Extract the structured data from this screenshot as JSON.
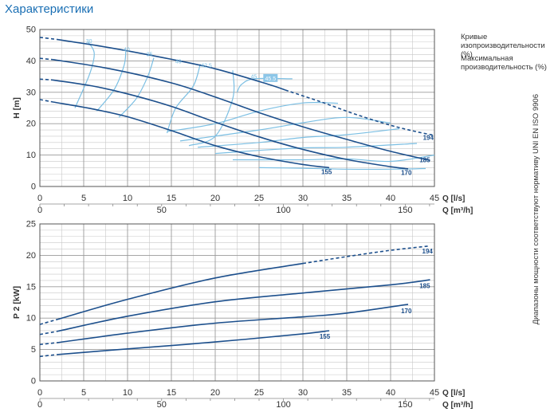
{
  "page": {
    "title": "Характеристики",
    "legend_iso": "Кривые изопроизводительности (%)",
    "legend_max": "Максимальная производительность (%)",
    "side_note": "Диапазоны мощности соответствуют нормативу UNI EN ISO 9906"
  },
  "colors": {
    "curve": "#1c4f8c",
    "iso": "#7bbfe3",
    "grid": "#9a9a9a",
    "label_bg": "#8cc6e8"
  },
  "chart_data": [
    {
      "type": "line",
      "ylabel": "H [m]",
      "xlabel_ls": "Q [l/s]",
      "xlabel_m3h": "Q [m³/h]",
      "xlim": [
        0,
        45
      ],
      "ylim": [
        0,
        50
      ],
      "yticks": [
        0,
        10,
        20,
        30,
        40,
        50
      ],
      "xticks_ls": [
        0,
        5,
        10,
        15,
        20,
        25,
        30,
        35,
        40,
        45
      ],
      "xticks_m3h": [
        0,
        50,
        100,
        150
      ],
      "grid": true,
      "series": [
        {
          "name": "194",
          "dash_start": [
            [
              0,
              47.5
            ],
            [
              2,
              46.8
            ]
          ],
          "solid": [
            [
              2,
              46.8
            ],
            [
              8,
              44.2
            ],
            [
              15,
              40.5
            ],
            [
              20,
              37.5
            ],
            [
              26,
              32.6
            ],
            [
              28,
              30.7
            ]
          ],
          "dash_end": [
            [
              28,
              30.7
            ],
            [
              32,
              27
            ],
            [
              36,
              23
            ],
            [
              40,
              19.5
            ],
            [
              43,
              17.4
            ],
            [
              45,
              16.3
            ]
          ]
        },
        {
          "name": "185",
          "dash_start": [
            [
              0,
              40.8
            ],
            [
              1.5,
              40.4
            ]
          ],
          "solid": [
            [
              1.5,
              40.4
            ],
            [
              8,
              37.5
            ],
            [
              15,
              33
            ],
            [
              20,
              28.5
            ],
            [
              25,
              23.5
            ],
            [
              30,
              19
            ],
            [
              35,
              15
            ],
            [
              40,
              11.2
            ],
            [
              44.5,
              8.3
            ]
          ],
          "dash_end": []
        },
        {
          "name": "170",
          "dash_start": [
            [
              0,
              34.2
            ],
            [
              1.5,
              33.9
            ]
          ],
          "solid": [
            [
              1.5,
              33.9
            ],
            [
              6,
              32
            ],
            [
              10,
              29.5
            ],
            [
              15,
              25.5
            ],
            [
              20,
              20.5
            ],
            [
              25,
              15.8
            ],
            [
              30,
              11.8
            ],
            [
              35,
              8.6
            ],
            [
              40,
              6.3
            ],
            [
              42,
              5.6
            ]
          ],
          "dash_end": []
        },
        {
          "name": "155",
          "dash_start": [
            [
              0,
              27.7
            ],
            [
              1.5,
              26.9
            ]
          ],
          "solid": [
            [
              1.5,
              26.9
            ],
            [
              6,
              24.7
            ],
            [
              10,
              22.2
            ],
            [
              15,
              17.8
            ],
            [
              20,
              13
            ],
            [
              25,
              9.5
            ],
            [
              30,
              7
            ],
            [
              33,
              6
            ]
          ],
          "dash_end": []
        }
      ],
      "series_labels": [
        {
          "text": "194",
          "x": 44.3,
          "y": 14.8
        },
        {
          "text": "185",
          "x": 43.9,
          "y": 7.7
        },
        {
          "text": "170",
          "x": 41.8,
          "y": 3.7
        },
        {
          "text": "155",
          "x": 32.7,
          "y": 3.9
        }
      ],
      "iso_lines": [
        [
          [
            4,
            25
          ],
          [
            5.7,
            36
          ],
          [
            6.2,
            42.5
          ],
          [
            5.5,
            46
          ]
        ],
        [
          [
            6.5,
            24
          ],
          [
            8.5,
            31
          ],
          [
            9.6,
            38.5
          ],
          [
            9.8,
            43
          ]
        ],
        [
          [
            9,
            22
          ],
          [
            11,
            28
          ],
          [
            12.3,
            35
          ],
          [
            13,
            41
          ]
        ],
        [
          [
            14.5,
            17
          ],
          [
            15.5,
            25
          ],
          [
            17.5,
            32
          ],
          [
            18.3,
            39
          ]
        ],
        [
          [
            17,
            13
          ],
          [
            20,
            16
          ],
          [
            22,
            28
          ],
          [
            22,
            37
          ]
        ],
        [
          [
            14.5,
            17.5
          ],
          [
            20,
            20
          ],
          [
            25,
            24
          ],
          [
            30,
            26.6
          ],
          [
            34,
            26.5
          ]
        ],
        [
          [
            16,
            14.5
          ],
          [
            25,
            18
          ],
          [
            30,
            20.3
          ],
          [
            35,
            22
          ],
          [
            40,
            20.2
          ]
        ],
        [
          [
            18,
            12.5
          ],
          [
            25,
            14
          ],
          [
            30,
            15.6
          ],
          [
            35,
            16.5
          ],
          [
            41,
            18.4
          ]
        ],
        [
          [
            20,
            10.5
          ],
          [
            25,
            11.5
          ],
          [
            30,
            12.3
          ],
          [
            35,
            12.5
          ],
          [
            43,
            13.7
          ]
        ],
        [
          [
            22,
            8.5
          ],
          [
            30,
            8.5
          ],
          [
            35,
            8.8
          ],
          [
            40,
            8
          ],
          [
            45,
            10
          ]
        ],
        [
          [
            25,
            6
          ],
          [
            30,
            5.8
          ],
          [
            35,
            5.5
          ],
          [
            40,
            5.5
          ],
          [
            44,
            5.7
          ]
        ],
        [
          [
            22.5,
            30
          ],
          [
            23,
            32.5
          ],
          [
            24.5,
            34.3
          ],
          [
            28.8,
            34.3
          ]
        ]
      ],
      "iso_labels": [
        {
          "text": "30",
          "x": 5.6,
          "y": 45.7
        },
        {
          "text": "40",
          "x": 9.9,
          "y": 43
        },
        {
          "text": "35",
          "x": 12.5,
          "y": 41.5
        },
        {
          "text": "40",
          "x": 15.8,
          "y": 39.2
        },
        {
          "text": "42.5",
          "x": 19,
          "y": 38
        },
        {
          "text": "45",
          "x": 24.4,
          "y": 34.4
        }
      ],
      "max_label": {
        "text": "45.5",
        "x": 26.3,
        "y": 33.8
      }
    },
    {
      "type": "line",
      "ylabel": "P 2 [kW]",
      "xlabel_ls": "Q [l/s]",
      "xlabel_m3h": "Q [m³/h]",
      "xlim": [
        0,
        45
      ],
      "ylim": [
        0,
        25
      ],
      "yticks": [
        0,
        5,
        10,
        15,
        20,
        25
      ],
      "xticks_ls": [
        0,
        5,
        10,
        15,
        20,
        25,
        30,
        35,
        40,
        45
      ],
      "xticks_m3h": [
        0,
        50,
        100,
        150
      ],
      "grid": true,
      "series": [
        {
          "name": "194",
          "dash_start": [
            [
              0,
              9
            ],
            [
              2,
              9.8
            ]
          ],
          "solid": [
            [
              2,
              9.8
            ],
            [
              10,
              13
            ],
            [
              20,
              16.4
            ],
            [
              30,
              18.7
            ]
          ],
          "dash_end": [
            [
              30,
              18.7
            ],
            [
              35,
              19.8
            ],
            [
              40,
              20.8
            ],
            [
              44.5,
              21.5
            ]
          ]
        },
        {
          "name": "185",
          "dash_start": [
            [
              0,
              7.4
            ],
            [
              2,
              7.9
            ]
          ],
          "solid": [
            [
              2,
              7.9
            ],
            [
              10,
              10.3
            ],
            [
              20,
              12.6
            ],
            [
              30,
              14
            ],
            [
              40,
              15.3
            ],
            [
              44.5,
              16.1
            ]
          ],
          "dash_end": []
        },
        {
          "name": "170",
          "dash_start": [
            [
              0,
              5.8
            ],
            [
              2,
              6.1
            ]
          ],
          "solid": [
            [
              2,
              6.1
            ],
            [
              10,
              7.6
            ],
            [
              20,
              9.2
            ],
            [
              30,
              10.2
            ],
            [
              35,
              10.8
            ],
            [
              42,
              12.2
            ]
          ],
          "dash_end": []
        },
        {
          "name": "155",
          "dash_start": [
            [
              0,
              3.9
            ],
            [
              2,
              4.2
            ]
          ],
          "solid": [
            [
              2,
              4.2
            ],
            [
              10,
              5.1
            ],
            [
              20,
              6.2
            ],
            [
              30,
              7.5
            ],
            [
              33,
              8
            ]
          ],
          "dash_end": []
        }
      ],
      "series_labels": [
        {
          "text": "194",
          "x": 44.2,
          "y": 20.3
        },
        {
          "text": "185",
          "x": 43.9,
          "y": 14.8
        },
        {
          "text": "170",
          "x": 41.8,
          "y": 10.8
        },
        {
          "text": "155",
          "x": 32.5,
          "y": 6.7
        }
      ]
    }
  ]
}
